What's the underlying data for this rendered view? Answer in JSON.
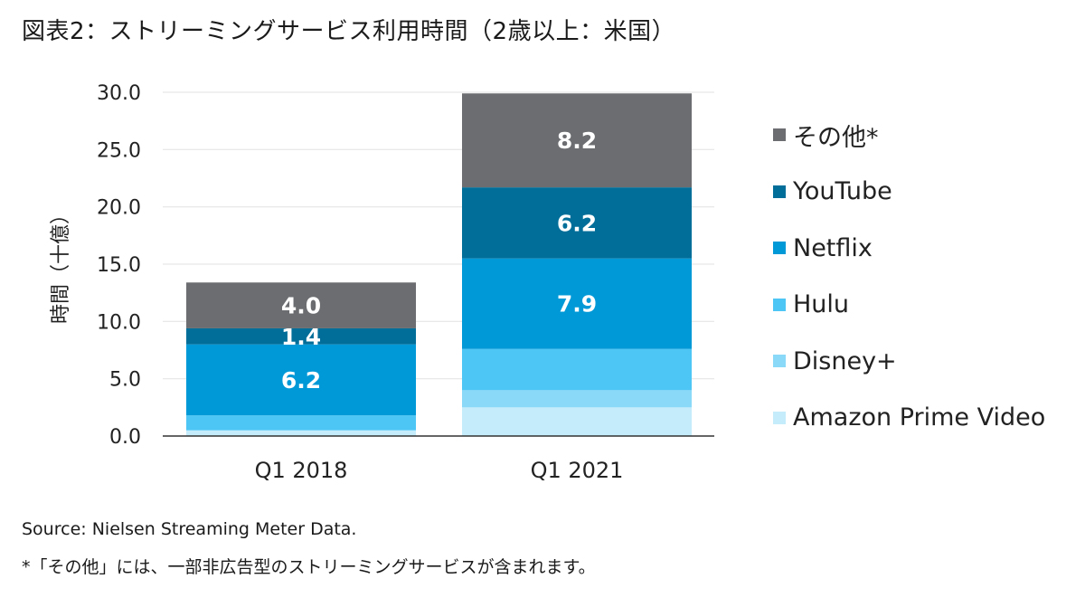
{
  "title": "図表2：ストリーミングサービス利用時間（2歳以上：米国）",
  "source": "Source: Nielsen Streaming Meter Data.",
  "note": "*「その他」には、一部非広告型のストリーミングサービスが含まれます。",
  "chart_data": {
    "type": "bar",
    "stacked": true,
    "title": "図表2：ストリーミングサービス利用時間（2歳以上：米国）",
    "ylabel": "時間（十億）",
    "xlabel": "",
    "ylim": [
      0,
      30
    ],
    "yticks": [
      "0.0",
      "5.0",
      "10.0",
      "15.0",
      "20.0",
      "25.0",
      "30.0"
    ],
    "grid": true,
    "legend_position": "right",
    "categories": [
      "Q1 2018",
      "Q1 2021"
    ],
    "series": [
      {
        "name": "Amazon Prime Video",
        "color": "#c5ecfb",
        "values": [
          0.5,
          2.5
        ],
        "labels": [
          "",
          ""
        ]
      },
      {
        "name": "Disney+",
        "color": "#8ad9f8",
        "values": [
          0.0,
          1.5
        ],
        "labels": [
          "",
          ""
        ]
      },
      {
        "name": "Hulu",
        "color": "#4ec6f5",
        "values": [
          1.3,
          3.6
        ],
        "labels": [
          "",
          ""
        ]
      },
      {
        "name": "Netflix",
        "color": "#0099d8",
        "values": [
          6.2,
          7.9
        ],
        "labels": [
          "6.2",
          "7.9"
        ]
      },
      {
        "name": "YouTube",
        "color": "#006e99",
        "values": [
          1.4,
          6.2
        ],
        "labels": [
          "1.4",
          "6.2"
        ]
      },
      {
        "name": "その他*",
        "color": "#6b6d70",
        "values": [
          4.0,
          8.2
        ],
        "labels": [
          "4.0",
          "8.2"
        ]
      }
    ],
    "legend_order": [
      "その他*",
      "YouTube",
      "Netflix",
      "Hulu",
      "Disney+",
      "Amazon Prime Video"
    ]
  }
}
